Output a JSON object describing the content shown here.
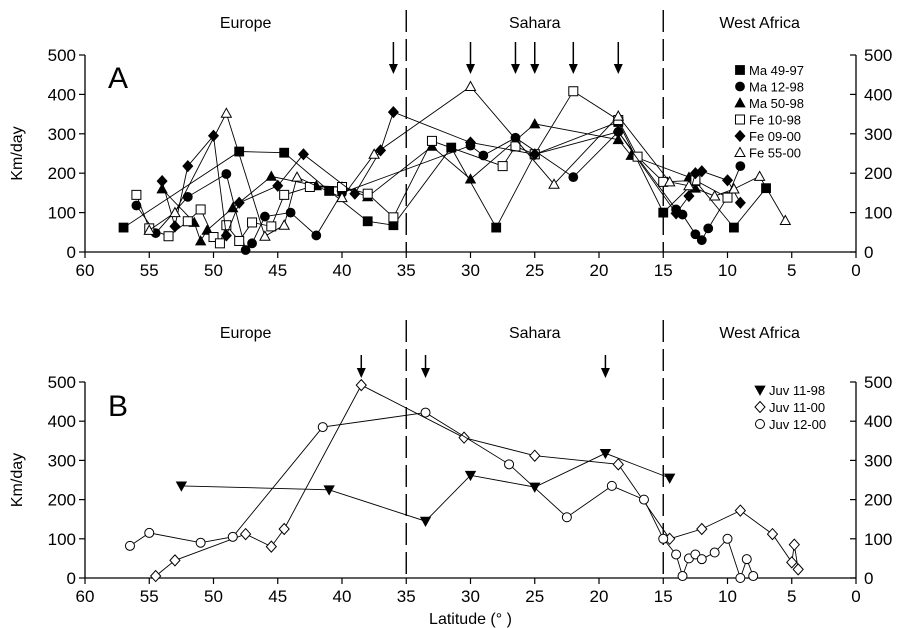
{
  "chart_data": [
    {
      "type": "line",
      "panel_label": "A",
      "ylabel": "Km/day",
      "xlabel": "",
      "xlim": [
        60,
        0
      ],
      "x_reversed": true,
      "ylim": [
        0,
        500
      ],
      "xticks": [
        60,
        55,
        50,
        45,
        40,
        35,
        30,
        25,
        20,
        15,
        10,
        5,
        0
      ],
      "yticks": [
        0,
        100,
        200,
        300,
        400,
        500
      ],
      "right_y_axis": true,
      "grid": false,
      "legend_position": "top-right",
      "regions": [
        {
          "label": "Europe",
          "x_center": 47.5
        },
        {
          "label": "Sahara",
          "x_center": 25
        },
        {
          "label": "West Africa",
          "x_center": 7.5
        }
      ],
      "boundaries": [
        35,
        15
      ],
      "arrows": [
        36,
        30,
        26.5,
        25,
        22,
        18.5
      ],
      "series": [
        {
          "name": "Ma 49-97",
          "marker": "square-filled",
          "points": [
            [
              57,
              62
            ],
            [
              48,
              255
            ],
            [
              44.5,
              252
            ],
            [
              41,
              155
            ],
            [
              38,
              78
            ],
            [
              36,
              68
            ],
            [
              31.5,
              265
            ],
            [
              28,
              62
            ],
            [
              25,
              248
            ],
            [
              18.5,
              330
            ],
            [
              15,
              100
            ],
            [
              12.5,
              180
            ],
            [
              9.5,
              62
            ],
            [
              7,
              162
            ]
          ]
        },
        {
          "name": "Ma 12-98",
          "marker": "circle-filled",
          "points": [
            [
              56,
              118
            ],
            [
              54.5,
              48
            ],
            [
              52,
              140
            ],
            [
              49,
              198
            ],
            [
              47.5,
              5
            ],
            [
              47,
              22
            ],
            [
              46,
              90
            ],
            [
              44,
              100
            ],
            [
              42,
              42
            ],
            [
              40,
              150
            ],
            [
              30,
              270
            ],
            [
              29,
              245
            ],
            [
              26.5,
              290
            ],
            [
              22,
              190
            ],
            [
              18.5,
              305
            ],
            [
              14,
              108
            ],
            [
              13.5,
              95
            ],
            [
              12.5,
              45
            ],
            [
              12,
              30
            ],
            [
              11.5,
              60
            ],
            [
              10,
              140
            ],
            [
              9,
              218
            ]
          ]
        },
        {
          "name": "Ma 50-98",
          "marker": "triangle-filled",
          "points": [
            [
              54,
              160
            ],
            [
              51.5,
              75
            ],
            [
              51,
              28
            ],
            [
              50.5,
              55
            ],
            [
              48.5,
              112
            ],
            [
              45.5,
              192
            ],
            [
              42,
              168
            ],
            [
              40,
              165
            ],
            [
              38,
              140
            ],
            [
              33,
              268
            ],
            [
              30,
              185
            ],
            [
              25,
              325
            ],
            [
              18.5,
              285
            ],
            [
              17.5,
              245
            ],
            [
              13,
              190
            ],
            [
              12.5,
              162
            ]
          ]
        },
        {
          "name": "Fe 10-98",
          "marker": "square-open",
          "points": [
            [
              56,
              145
            ],
            [
              55,
              60
            ],
            [
              53.5,
              40
            ],
            [
              52,
              78
            ],
            [
              51,
              108
            ],
            [
              50,
              38
            ],
            [
              49.5,
              22
            ],
            [
              49,
              68
            ],
            [
              48,
              28
            ],
            [
              47,
              75
            ],
            [
              45.5,
              65
            ],
            [
              44.5,
              145
            ],
            [
              42.5,
              165
            ],
            [
              40,
              165
            ],
            [
              38,
              148
            ],
            [
              36,
              88
            ],
            [
              33,
              282
            ],
            [
              27.5,
              218
            ],
            [
              26.5,
              268
            ],
            [
              25,
              248
            ],
            [
              22,
              408
            ],
            [
              18.5,
              335
            ],
            [
              17,
              242
            ],
            [
              15,
              178
            ],
            [
              12.5,
              182
            ],
            [
              10,
              138
            ]
          ]
        },
        {
          "name": "Fe 09-00",
          "marker": "diamond-filled",
          "points": [
            [
              54,
              180
            ],
            [
              53,
              65
            ],
            [
              52,
              218
            ],
            [
              50,
              295
            ],
            [
              49,
              42
            ],
            [
              48,
              125
            ],
            [
              45,
              168
            ],
            [
              43,
              248
            ],
            [
              39,
              148
            ],
            [
              37,
              258
            ],
            [
              36,
              355
            ],
            [
              30,
              278
            ],
            [
              25,
              248
            ],
            [
              18.5,
              305
            ],
            [
              14,
              98
            ],
            [
              13,
              142
            ],
            [
              12.5,
              200
            ],
            [
              12,
              205
            ],
            [
              10,
              182
            ],
            [
              9,
              125
            ]
          ]
        },
        {
          "name": "Fe 55-00",
          "marker": "triangle-open",
          "points": [
            [
              55,
              55
            ],
            [
              53,
              100
            ],
            [
              49,
              352
            ],
            [
              46,
              40
            ],
            [
              44.5,
              68
            ],
            [
              43.5,
              190
            ],
            [
              40,
              138
            ],
            [
              37.5,
              248
            ],
            [
              30,
              420
            ],
            [
              23.5,
              172
            ],
            [
              18.5,
              345
            ],
            [
              14.5,
              178
            ],
            [
              13,
              168
            ],
            [
              11,
              142
            ],
            [
              9.5,
              160
            ],
            [
              7.5,
              192
            ],
            [
              5.5,
              80
            ]
          ]
        }
      ]
    },
    {
      "type": "line",
      "panel_label": "B",
      "ylabel": "Km/day",
      "xlabel": "Latitude (° )",
      "xlim": [
        60,
        0
      ],
      "x_reversed": true,
      "ylim": [
        0,
        500
      ],
      "xticks": [
        60,
        55,
        50,
        45,
        40,
        35,
        30,
        25,
        20,
        15,
        10,
        5,
        0
      ],
      "yticks": [
        0,
        100,
        200,
        300,
        400,
        500
      ],
      "right_y_axis": true,
      "grid": false,
      "legend_position": "top-right",
      "regions": [
        {
          "label": "Europe",
          "x_center": 47.5
        },
        {
          "label": "Sahara",
          "x_center": 25
        },
        {
          "label": "West Africa",
          "x_center": 7.5
        }
      ],
      "boundaries": [
        35,
        15
      ],
      "arrows": [
        38.5,
        33.5,
        19.5
      ],
      "series": [
        {
          "name": "Juv 11-98",
          "marker": "triangle-down-filled",
          "points": [
            [
              52.5,
              235
            ],
            [
              41,
              225
            ],
            [
              33.5,
              145
            ],
            [
              30,
              262
            ],
            [
              25,
              232
            ],
            [
              19.5,
              318
            ],
            [
              14.5,
              255
            ]
          ]
        },
        {
          "name": "Juv 11-00",
          "marker": "diamond-open",
          "points": [
            [
              54.5,
              5
            ],
            [
              53,
              45
            ],
            [
              47.5,
              112
            ],
            [
              45.5,
              80
            ],
            [
              44.5,
              125
            ],
            [
              38.5,
              492
            ],
            [
              30.5,
              358
            ],
            [
              25,
              312
            ],
            [
              18.5,
              290
            ],
            [
              14.5,
              100
            ],
            [
              12,
              125
            ],
            [
              9,
              172
            ],
            [
              6.5,
              112
            ],
            [
              5,
              40
            ],
            [
              4.8,
              85
            ],
            [
              4.5,
              22
            ]
          ]
        },
        {
          "name": "Juv 12-00",
          "marker": "circle-open",
          "points": [
            [
              56.5,
              82
            ],
            [
              55,
              115
            ],
            [
              51,
              90
            ],
            [
              48.5,
              105
            ],
            [
              41.5,
              385
            ],
            [
              33.5,
              422
            ],
            [
              27,
              290
            ],
            [
              22.5,
              155
            ],
            [
              19,
              235
            ],
            [
              16.5,
              200
            ],
            [
              15,
              100
            ],
            [
              14,
              60
            ],
            [
              13.5,
              5
            ],
            [
              13,
              50
            ],
            [
              12.5,
              60
            ],
            [
              12,
              48
            ],
            [
              11,
              65
            ],
            [
              10,
              100
            ],
            [
              9,
              0
            ],
            [
              8.5,
              48
            ],
            [
              8,
              5
            ]
          ]
        }
      ]
    }
  ]
}
